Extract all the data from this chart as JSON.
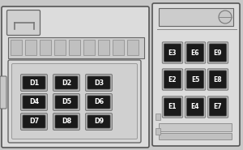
{
  "bg_color": "#c8c8c8",
  "relay_bg": "#1a1a1a",
  "relay_text": "#ffffff",
  "relay_border_d": "#999999",
  "relay_border_e": "#999999",
  "outline_color": "#555555",
  "d_relays": [
    [
      "D1",
      "D2",
      "D3"
    ],
    [
      "D4",
      "D5",
      "D6"
    ],
    [
      "D7",
      "D8",
      "D9"
    ]
  ],
  "e_relays": [
    [
      "E3",
      "E6",
      "E9"
    ],
    [
      "E2",
      "E5",
      "E8"
    ],
    [
      "E1",
      "E4",
      "E7"
    ]
  ],
  "figsize": [
    3.0,
    1.85
  ],
  "dpi": 100
}
